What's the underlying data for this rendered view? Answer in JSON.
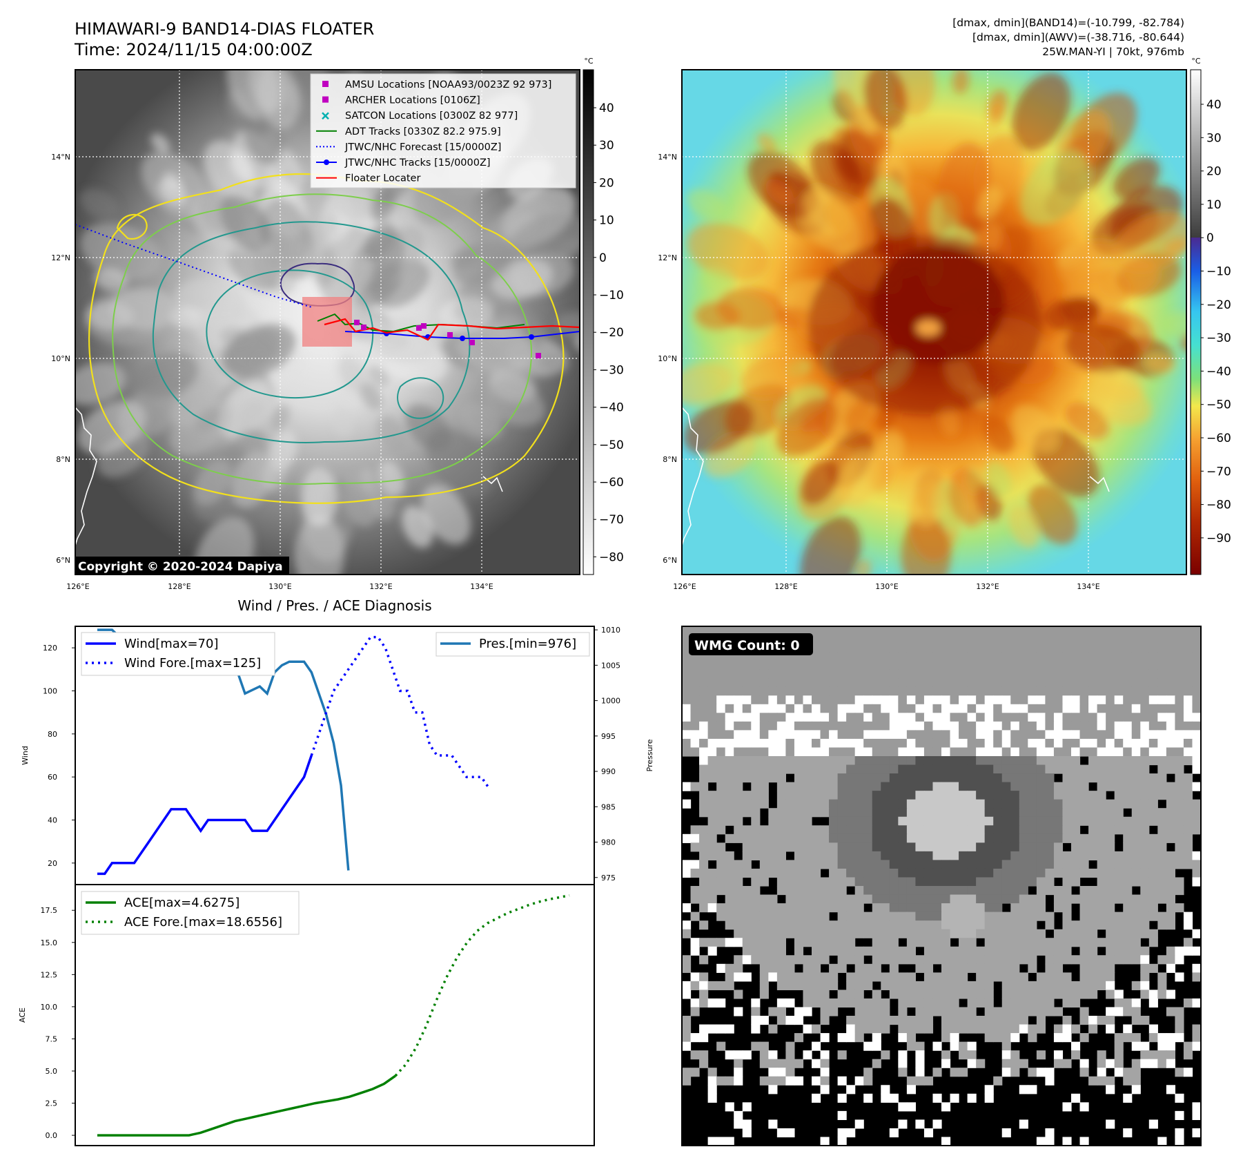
{
  "header": {
    "title_line1": "HIMAWARI-9 BAND14-DIAS FLOATER",
    "title_line2": "Time: 2024/11/15 04:00:00Z",
    "info_line1": "[dmax, dmin](BAND14)=(-10.799, -82.784)",
    "info_line2": "[dmax, dmin](AWV)=(-38.716, -80.644)",
    "info_line3": "25W.MAN-YI | 70kt, 976mb"
  },
  "map": {
    "lat_ticks": [
      "14°N",
      "12°N",
      "10°N",
      "8°N",
      "6°N"
    ],
    "lon_ticks": [
      "126°E",
      "128°E",
      "130°E",
      "132°E",
      "134°E"
    ],
    "copyright": "Copyright © 2020-2024 Dapiya",
    "colorbar_unit": "°C",
    "gray_colorbar_ticks": [
      "40",
      "30",
      "20",
      "10",
      "0",
      "−10",
      "−20",
      "−30",
      "−40",
      "−50",
      "−60",
      "−70",
      "−80"
    ],
    "color_colorbar_ticks": [
      "40",
      "30",
      "20",
      "10",
      "0",
      "−10",
      "−20",
      "−30",
      "−40",
      "−50",
      "−60",
      "−70",
      "−80",
      "−90"
    ],
    "legend": [
      {
        "label": "AMSU Locations [NOAA93/0023Z 92 973]",
        "kind": "square",
        "color": "#c000c0"
      },
      {
        "label": "ARCHER Locations [0106Z]",
        "kind": "square",
        "color": "#c000c0"
      },
      {
        "label": "SATCON Locations [0300Z 82 977]",
        "kind": "cross",
        "color": "#00b0b0"
      },
      {
        "label": "ADT Tracks [0330Z 82.2 975.9]",
        "kind": "line",
        "color": "#008000"
      },
      {
        "label": "JTWC/NHC Forecast [15/0000Z]",
        "kind": "dotted",
        "color": "#0000ff"
      },
      {
        "label": "JTWC/NHC Tracks [15/0000Z]",
        "kind": "line-dot",
        "color": "#0000ff"
      },
      {
        "label": "Floater Locater",
        "kind": "line",
        "color": "#ff0000"
      }
    ],
    "colors": {
      "contour_yellow": "#f2e01c",
      "contour_light_green": "#7dce4b",
      "contour_teal": "#22988e",
      "contour_navy": "#3b2d7e"
    }
  },
  "wmg": {
    "label": "WMG Count: 0"
  },
  "chart_data": [
    {
      "type": "line",
      "title": "Wind / Pres. / ACE Diagnosis",
      "ylabel": "Wind",
      "y2label": "Pressure",
      "ylim": [
        10,
        130
      ],
      "y2lim": [
        974,
        1010.5
      ],
      "yticks": [
        20,
        40,
        60,
        80,
        100,
        120
      ],
      "y2ticks": [
        975,
        980,
        985,
        990,
        995,
        1000,
        1005,
        1010
      ],
      "series": [
        {
          "name": "Wind[max=70]",
          "axis": "left",
          "style": "solid",
          "color": "#0000ff",
          "values": [
            15,
            15,
            20,
            20,
            20,
            20,
            25,
            30,
            35,
            40,
            45,
            45,
            45,
            40,
            35,
            40,
            40,
            40,
            40,
            40,
            40,
            35,
            35,
            35,
            40,
            45,
            50,
            55,
            60,
            70
          ]
        },
        {
          "name": "Wind Fore.[max=125]",
          "axis": "left",
          "style": "dotted",
          "color": "#0000ff",
          "values": [
            70,
            80,
            90,
            100,
            105,
            110,
            115,
            120,
            125,
            125,
            120,
            110,
            100,
            100,
            90,
            90,
            75,
            70,
            70,
            70,
            65,
            60,
            60,
            60,
            55
          ]
        },
        {
          "name": "Pres.[min=976]",
          "axis": "right",
          "style": "solid",
          "color": "#1f77b4",
          "values": [
            1010,
            1010,
            1010,
            1009,
            1009,
            1009.5,
            1009.5,
            1009.5,
            1009.5,
            1008,
            1008,
            1006,
            1005,
            1004,
            1004.5,
            1005,
            1006,
            1007,
            1004,
            1004,
            1001,
            1001.5,
            1002,
            1001,
            1004,
            1005,
            1005.5,
            1005.5,
            1005.5,
            1004,
            1001,
            998,
            994,
            988,
            976
          ]
        }
      ]
    },
    {
      "type": "line",
      "ylabel": "ACE",
      "ylim": [
        -0.8,
        19.5
      ],
      "yticks": [
        0.0,
        2.5,
        5.0,
        7.5,
        10.0,
        12.5,
        15.0,
        17.5
      ],
      "series": [
        {
          "name": "ACE[max=4.6275]",
          "style": "solid",
          "color": "#008000",
          "values": [
            0,
            0,
            0,
            0,
            0,
            0,
            0,
            0,
            0,
            0.2,
            0.5,
            0.8,
            1.1,
            1.3,
            1.5,
            1.7,
            1.9,
            2.1,
            2.3,
            2.5,
            2.65,
            2.8,
            3.0,
            3.3,
            3.6,
            4.0,
            4.63
          ]
        },
        {
          "name": "ACE Fore.[max=18.6556]",
          "style": "dotted",
          "color": "#008000",
          "values": [
            4.63,
            5.5,
            6.8,
            8.5,
            10.5,
            12.3,
            13.8,
            15.0,
            15.9,
            16.5,
            16.9,
            17.3,
            17.6,
            17.9,
            18.15,
            18.35,
            18.5,
            18.66
          ]
        }
      ]
    }
  ]
}
